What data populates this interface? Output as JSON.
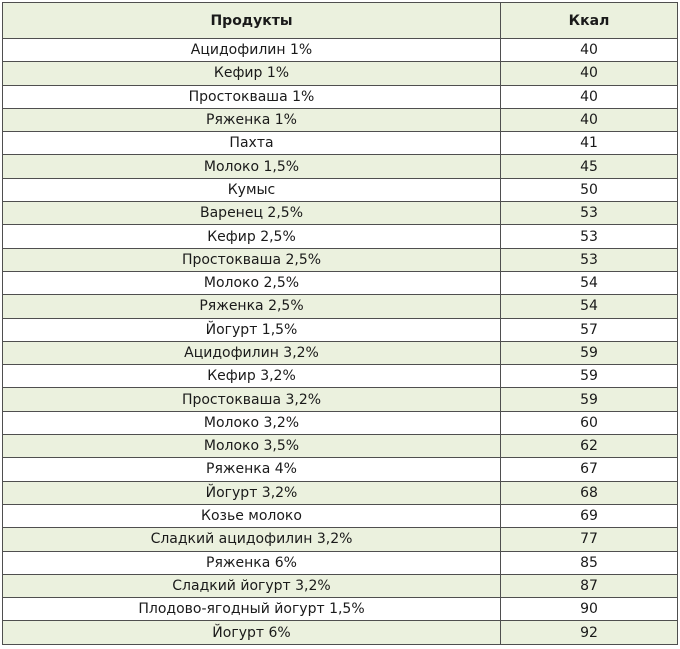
{
  "table": {
    "headers": {
      "product": "Продукты",
      "kcal": "Ккал"
    },
    "rows": [
      {
        "product": "Ацидофилин 1%",
        "kcal": "40"
      },
      {
        "product": "Кефир 1%",
        "kcal": "40"
      },
      {
        "product": "Простокваша 1%",
        "kcal": "40"
      },
      {
        "product": "Ряженка 1%",
        "kcal": "40"
      },
      {
        "product": "Пахта",
        "kcal": "41"
      },
      {
        "product": "Молоко 1,5%",
        "kcal": "45"
      },
      {
        "product": "Кумыс",
        "kcal": "50"
      },
      {
        "product": "Варенец 2,5%",
        "kcal": "53"
      },
      {
        "product": "Кефир 2,5%",
        "kcal": "53"
      },
      {
        "product": "Простокваша 2,5%",
        "kcal": "53"
      },
      {
        "product": "Молоко 2,5%",
        "kcal": "54"
      },
      {
        "product": "Ряженка 2,5%",
        "kcal": "54"
      },
      {
        "product": "Йогурт 1,5%",
        "kcal": "57"
      },
      {
        "product": "Ацидофилин 3,2%",
        "kcal": "59"
      },
      {
        "product": "Кефир 3,2%",
        "kcal": "59"
      },
      {
        "product": "Простокваша 3,2%",
        "kcal": "59"
      },
      {
        "product": "Молоко 3,2%",
        "kcal": "60"
      },
      {
        "product": "Молоко 3,5%",
        "kcal": "62"
      },
      {
        "product": "Ряженка 4%",
        "kcal": "67"
      },
      {
        "product": "Йогурт 3,2%",
        "kcal": "68"
      },
      {
        "product": "Козье молоко",
        "kcal": "69"
      },
      {
        "product": "Сладкий ацидофилин 3,2%",
        "kcal": "77"
      },
      {
        "product": "Ряженка 6%",
        "kcal": "85"
      },
      {
        "product": "Сладкий йогурт 3,2%",
        "kcal": "87"
      },
      {
        "product": "Плодово-ягодный йогурт 1,5%",
        "kcal": "90"
      },
      {
        "product": "Йогурт 6%",
        "kcal": "92"
      }
    ]
  },
  "colors": {
    "header_bg": "#ebf1de",
    "alt_row_bg": "#ebf1de",
    "row_bg": "#ffffff",
    "border": "#4f4f4f"
  }
}
